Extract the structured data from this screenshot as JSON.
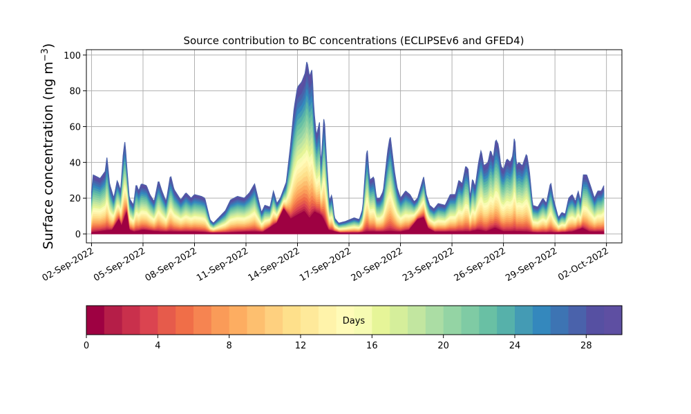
{
  "chart_data": {
    "type": "area",
    "subtype": "stacked area (source contribution by days since emission)",
    "title": "Source contribution to BC concentrations (ECLIPSEv6 and GFED4)",
    "xlabel": "",
    "ylabel_main": "Surface concentration (ng m",
    "ylabel_sup": "−3",
    "ylabel_close": ")",
    "ylim": [
      -5,
      103
    ],
    "yticks": [
      0,
      20,
      40,
      60,
      80,
      100
    ],
    "x_day_range": [
      0.7,
      31.9
    ],
    "xtick_labels": [
      "02-Sep-2022",
      "05-Sep-2022",
      "08-Sep-2022",
      "11-Sep-2022",
      "14-Sep-2022",
      "17-Sep-2022",
      "20-Sep-2022",
      "23-Sep-2022",
      "26-Sep-2022",
      "29-Sep-2022",
      "02-Oct-2022"
    ],
    "grid": true,
    "colorbar": {
      "label": "Days",
      "range": [
        0,
        30
      ],
      "ticks": [
        0,
        4,
        8,
        12,
        16,
        20,
        24,
        28
      ],
      "colors": [
        "#9e0142",
        "#b51e48",
        "#c9304c",
        "#db4450",
        "#e65b4b",
        "#f06e48",
        "#f68451",
        "#fa9b58",
        "#fdad61",
        "#fdbf6f",
        "#fed07f",
        "#fee08b",
        "#fee99a",
        "#fff3aa",
        "#fffbb8",
        "#f6fbb2",
        "#e6f598",
        "#d5ee9b",
        "#c2e6a0",
        "#abdda4",
        "#94d4a4",
        "#7fcba4",
        "#69c0a4",
        "#56b1aa",
        "#449bb4",
        "#3488bd",
        "#3d74b3",
        "#4a62ab",
        "#5650a2",
        "#5e4fa2"
      ]
    },
    "total_series_anchors": [
      [
        1.0,
        23
      ],
      [
        1.1,
        33
      ],
      [
        1.5,
        31
      ],
      [
        1.8,
        35
      ],
      [
        1.9,
        43
      ],
      [
        2.05,
        28
      ],
      [
        2.3,
        20
      ],
      [
        2.5,
        30
      ],
      [
        2.7,
        24
      ],
      [
        2.85,
        45
      ],
      [
        2.95,
        52
      ],
      [
        3.05,
        38
      ],
      [
        3.2,
        20
      ],
      [
        3.45,
        16
      ],
      [
        3.6,
        28
      ],
      [
        3.75,
        24
      ],
      [
        3.9,
        28
      ],
      [
        4.2,
        27
      ],
      [
        4.4,
        22
      ],
      [
        4.65,
        18
      ],
      [
        4.9,
        30
      ],
      [
        5.1,
        24
      ],
      [
        5.35,
        18
      ],
      [
        5.6,
        33
      ],
      [
        5.8,
        25
      ],
      [
        6.2,
        19
      ],
      [
        6.5,
        23
      ],
      [
        6.8,
        20
      ],
      [
        7.0,
        22
      ],
      [
        7.4,
        21
      ],
      [
        7.6,
        20
      ],
      [
        7.9,
        8
      ],
      [
        8.1,
        6
      ],
      [
        8.4,
        9
      ],
      [
        8.8,
        13
      ],
      [
        9.1,
        19
      ],
      [
        9.5,
        21
      ],
      [
        9.9,
        20
      ],
      [
        10.2,
        23
      ],
      [
        10.5,
        28
      ],
      [
        10.7,
        20
      ],
      [
        10.9,
        12
      ],
      [
        11.1,
        16
      ],
      [
        11.4,
        15
      ],
      [
        11.6,
        24
      ],
      [
        11.8,
        17
      ],
      [
        12.0,
        20
      ],
      [
        12.35,
        29
      ],
      [
        12.6,
        50
      ],
      [
        12.8,
        70
      ],
      [
        13.0,
        82
      ],
      [
        13.25,
        85
      ],
      [
        13.45,
        90
      ],
      [
        13.55,
        97
      ],
      [
        13.7,
        88
      ],
      [
        13.85,
        92
      ],
      [
        13.95,
        70
      ],
      [
        14.1,
        55
      ],
      [
        14.3,
        63
      ],
      [
        14.35,
        35
      ],
      [
        14.55,
        67
      ],
      [
        14.7,
        40
      ],
      [
        14.85,
        18
      ],
      [
        15.0,
        22
      ],
      [
        15.15,
        9
      ],
      [
        15.4,
        6
      ],
      [
        15.8,
        7
      ],
      [
        16.3,
        9
      ],
      [
        16.6,
        8
      ],
      [
        16.8,
        14
      ],
      [
        17.05,
        49
      ],
      [
        17.2,
        30
      ],
      [
        17.45,
        32
      ],
      [
        17.6,
        20
      ],
      [
        17.8,
        20
      ],
      [
        18.0,
        24
      ],
      [
        18.25,
        46
      ],
      [
        18.4,
        55
      ],
      [
        18.65,
        35
      ],
      [
        18.8,
        26
      ],
      [
        19.0,
        20
      ],
      [
        19.3,
        24
      ],
      [
        19.55,
        22
      ],
      [
        19.8,
        18
      ],
      [
        20.0,
        20
      ],
      [
        20.35,
        32
      ],
      [
        20.5,
        22
      ],
      [
        20.7,
        16
      ],
      [
        20.95,
        14
      ],
      [
        21.2,
        17
      ],
      [
        21.6,
        16
      ],
      [
        21.9,
        22
      ],
      [
        22.2,
        22
      ],
      [
        22.4,
        30
      ],
      [
        22.6,
        28
      ],
      [
        22.8,
        38
      ],
      [
        22.95,
        36
      ],
      [
        23.05,
        20
      ],
      [
        23.2,
        31
      ],
      [
        23.35,
        26
      ],
      [
        23.55,
        40
      ],
      [
        23.7,
        47
      ],
      [
        23.85,
        38
      ],
      [
        24.1,
        40
      ],
      [
        24.25,
        47
      ],
      [
        24.4,
        42
      ],
      [
        24.55,
        53
      ],
      [
        24.7,
        50
      ],
      [
        24.85,
        38
      ],
      [
        25.0,
        36
      ],
      [
        25.2,
        42
      ],
      [
        25.4,
        40
      ],
      [
        25.55,
        44
      ],
      [
        25.65,
        56
      ],
      [
        25.75,
        38
      ],
      [
        25.9,
        40
      ],
      [
        26.1,
        38
      ],
      [
        26.35,
        45
      ],
      [
        26.5,
        36
      ],
      [
        26.7,
        16
      ],
      [
        27.0,
        15
      ],
      [
        27.3,
        20
      ],
      [
        27.5,
        17
      ],
      [
        27.75,
        29
      ],
      [
        27.9,
        20
      ],
      [
        28.2,
        9
      ],
      [
        28.4,
        12
      ],
      [
        28.6,
        11
      ],
      [
        28.8,
        20
      ],
      [
        29.0,
        22
      ],
      [
        29.2,
        18
      ],
      [
        29.35,
        24
      ],
      [
        29.5,
        18
      ],
      [
        29.65,
        33
      ],
      [
        29.85,
        33
      ],
      [
        30.1,
        26
      ],
      [
        30.3,
        20
      ],
      [
        30.5,
        24
      ],
      [
        30.7,
        24
      ],
      [
        30.85,
        27
      ]
    ],
    "day0_series_anchors": [
      [
        1.0,
        0.5
      ],
      [
        2.2,
        2
      ],
      [
        2.6,
        8
      ],
      [
        2.75,
        4
      ],
      [
        3.05,
        12
      ],
      [
        3.2,
        2
      ],
      [
        3.5,
        1
      ],
      [
        4.0,
        2
      ],
      [
        5.0,
        1
      ],
      [
        6.0,
        1
      ],
      [
        7.0,
        1
      ],
      [
        8.0,
        0.5
      ],
      [
        9.0,
        0.5
      ],
      [
        10.0,
        1
      ],
      [
        11.0,
        1
      ],
      [
        11.8,
        6
      ],
      [
        12.2,
        14
      ],
      [
        12.6,
        8
      ],
      [
        13.0,
        10
      ],
      [
        13.4,
        12
      ],
      [
        13.7,
        8
      ],
      [
        14.0,
        12
      ],
      [
        14.4,
        10
      ],
      [
        14.8,
        2
      ],
      [
        15.5,
        0.5
      ],
      [
        16.5,
        0.5
      ],
      [
        17.2,
        1
      ],
      [
        18.0,
        1
      ],
      [
        19.0,
        1
      ],
      [
        19.5,
        2
      ],
      [
        20.0,
        8
      ],
      [
        20.35,
        9
      ],
      [
        20.6,
        3
      ],
      [
        21.0,
        1
      ],
      [
        22.0,
        1
      ],
      [
        23.0,
        1
      ],
      [
        23.5,
        2
      ],
      [
        24.0,
        1
      ],
      [
        24.5,
        3
      ],
      [
        25.0,
        1
      ],
      [
        26.0,
        1
      ],
      [
        27.0,
        0.5
      ],
      [
        28.0,
        0.5
      ],
      [
        29.0,
        1
      ],
      [
        29.6,
        3
      ],
      [
        30.0,
        1
      ],
      [
        30.85,
        1
      ]
    ]
  }
}
